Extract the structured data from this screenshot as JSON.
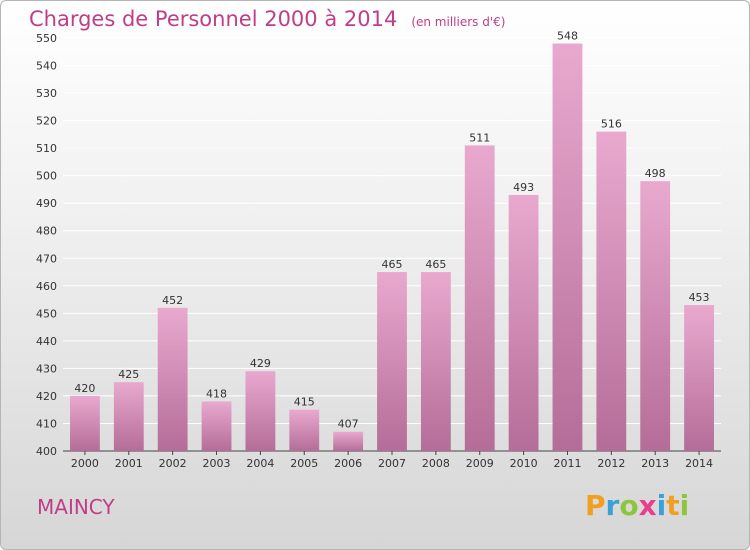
{
  "header": {
    "title": "Charges de Personnel 2000 à 2014",
    "unit": "(en milliers d'€)"
  },
  "footer": {
    "commune": "MAINCY",
    "logo_letters": [
      {
        "ch": "P",
        "color": "#f0a020"
      },
      {
        "ch": "r",
        "color": "#3aa0d8"
      },
      {
        "ch": "o",
        "color": "#8cc63f"
      },
      {
        "ch": "x",
        "color": "#e83e8c"
      },
      {
        "ch": "i",
        "color": "#3aa0d8"
      },
      {
        "ch": "t",
        "color": "#f0a020"
      },
      {
        "ch": "i",
        "color": "#8cc63f"
      }
    ]
  },
  "colors": {
    "title": "#c03e88",
    "bar_top": "#e9a9cf",
    "bar_bottom": "#b46d98",
    "grid": "#ffffff"
  },
  "chart_data": {
    "type": "bar",
    "categories": [
      "2000",
      "2001",
      "2002",
      "2003",
      "2004",
      "2005",
      "2006",
      "2007",
      "2008",
      "2009",
      "2010",
      "2011",
      "2012",
      "2013",
      "2014"
    ],
    "values": [
      420,
      425,
      452,
      418,
      429,
      415,
      407,
      465,
      465,
      511,
      493,
      548,
      516,
      498,
      453
    ],
    "ylim": [
      400,
      550
    ],
    "ytick_step": 10,
    "grid": true
  }
}
